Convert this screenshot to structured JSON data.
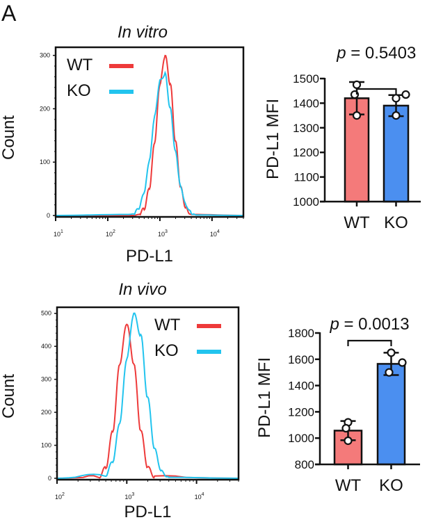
{
  "panel_label": "A",
  "colors": {
    "wt_line": "#ee3a3a",
    "ko_line": "#22c4ee",
    "wt_bar": "#f47a7a",
    "ko_bar": "#4b8ff0"
  },
  "chart_data": [
    {
      "type": "line",
      "title": "In vitro",
      "xlabel": "PD-L1",
      "ylabel": "Count",
      "x_scale": "log",
      "xlim": [
        10,
        40000
      ],
      "ylim": [
        0,
        310
      ],
      "xticks": [
        {
          "base": "10",
          "exp": "1"
        },
        {
          "base": "10",
          "exp": "2"
        },
        {
          "base": "10",
          "exp": "3"
        },
        {
          "base": "10",
          "exp": "4"
        }
      ],
      "yticks": [
        "0",
        "100",
        "200",
        "300"
      ],
      "legend_placement": "top-left",
      "series": [
        {
          "name": "WT",
          "x": [
            316,
            398,
            501,
            631,
            794,
            1000,
            1259,
            1585,
            1995,
            2512,
            3162,
            3981
          ],
          "y": [
            0,
            2,
            13,
            52,
            138,
            246,
            300,
            246,
            138,
            52,
            13,
            2
          ]
        },
        {
          "name": "KO",
          "x": [
            251,
            316,
            398,
            501,
            631,
            794,
            1000,
            1259,
            1585,
            1995,
            2512,
            3162,
            3981,
            5012
          ],
          "y": [
            2,
            3,
            14,
            44,
            104,
            186,
            252,
            265,
            200,
            119,
            53,
            19,
            5,
            1
          ]
        }
      ]
    },
    {
      "type": "bar",
      "ylabel": "PD-L1 MFI",
      "categories": [
        "WT",
        "KO"
      ],
      "values": [
        1420,
        1390
      ],
      "error": [
        66,
        43
      ],
      "points": [
        [
          1475,
          1435,
          1350
        ],
        [
          1420,
          1435,
          1350
        ]
      ],
      "ylim": [
        1000,
        1500
      ],
      "yticks": [
        "1000",
        "1100",
        "1200",
        "1300",
        "1400",
        "1500"
      ],
      "annotation": {
        "p_label": "p",
        "p_value": " = 0.5403"
      }
    },
    {
      "type": "line",
      "title": "In vivo",
      "xlabel": "PD-L1",
      "ylabel": "Count",
      "x_scale": "log",
      "xlim": [
        100,
        40000
      ],
      "ylim": [
        0,
        510
      ],
      "xticks": [
        {
          "base": "10",
          "exp": "2"
        },
        {
          "base": "10",
          "exp": "3"
        },
        {
          "base": "10",
          "exp": "4"
        }
      ],
      "yticks": [
        "0",
        "100",
        "200",
        "300",
        "400",
        "500"
      ],
      "legend_placement": "top-right",
      "series": [
        {
          "name": "WT",
          "x": [
            398,
            501,
            631,
            794,
            1000,
            1259,
            1585,
            1995,
            2512
          ],
          "y": [
            4,
            33,
            145,
            349,
            470,
            349,
            145,
            33,
            4
          ]
        },
        {
          "name": "KO",
          "x": [
            501,
            631,
            794,
            1000,
            1259,
            1585,
            1995,
            2512,
            3162,
            3981
          ],
          "y": [
            10,
            52,
            170,
            363,
            500,
            434,
            243,
            87,
            20,
            3
          ]
        }
      ]
    },
    {
      "type": "bar",
      "ylabel": "PD-L1 MFI",
      "categories": [
        "WT",
        "KO"
      ],
      "values": [
        1057,
        1565
      ],
      "error": [
        73,
        85
      ],
      "points": [
        [
          1120,
          1075,
          980
        ],
        [
          1650,
          1500,
          1575
        ]
      ],
      "ylim": [
        800,
        1800
      ],
      "yticks": [
        "800",
        "1000",
        "1200",
        "1400",
        "1600",
        "1800"
      ],
      "annotation": {
        "p_label": "p",
        "p_value": " = 0.0013"
      }
    }
  ]
}
